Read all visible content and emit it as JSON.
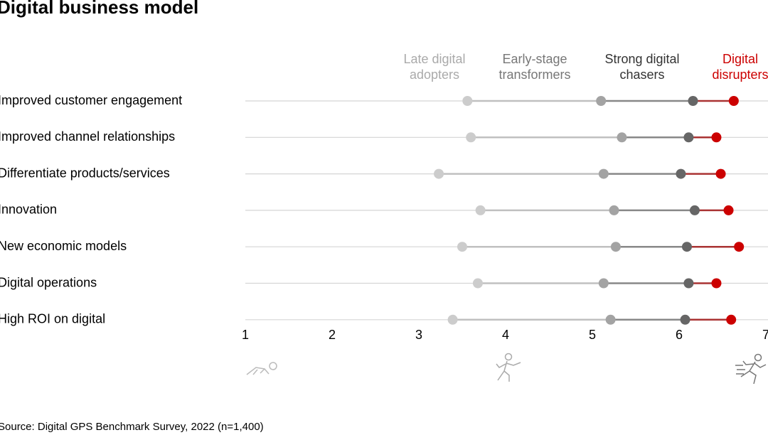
{
  "chart_data": {
    "type": "dotplot",
    "title": "Digital business model",
    "categories": [
      "Improved customer engagement",
      "Improved channel relationships",
      "Differentiate products/services",
      "Innovation",
      "New economic models",
      "Digital operations",
      "High ROI on digital"
    ],
    "series": [
      {
        "name": "Late digital adopters",
        "color": "#cccccc",
        "values": [
          3.56,
          3.6,
          3.23,
          3.71,
          3.5,
          3.68,
          3.39
        ]
      },
      {
        "name": "Early-stage transformers",
        "color": "#a3a3a3",
        "values": [
          5.1,
          5.34,
          5.13,
          5.25,
          5.27,
          5.13,
          5.21
        ]
      },
      {
        "name": "Strong digital chasers",
        "color": "#666666",
        "values": [
          6.16,
          6.11,
          6.02,
          6.18,
          6.09,
          6.11,
          6.07
        ]
      },
      {
        "name": "Digital disrupters",
        "color": "#cc0000",
        "values": [
          6.63,
          6.43,
          6.48,
          6.57,
          6.69,
          6.43,
          6.6
        ]
      }
    ],
    "xlim": [
      1,
      7
    ],
    "xticks": [
      1,
      2,
      3,
      4,
      5,
      6,
      7
    ],
    "source": "Source: Digital GPS Benchmark Survey, 2022 (n=1,400)"
  }
}
